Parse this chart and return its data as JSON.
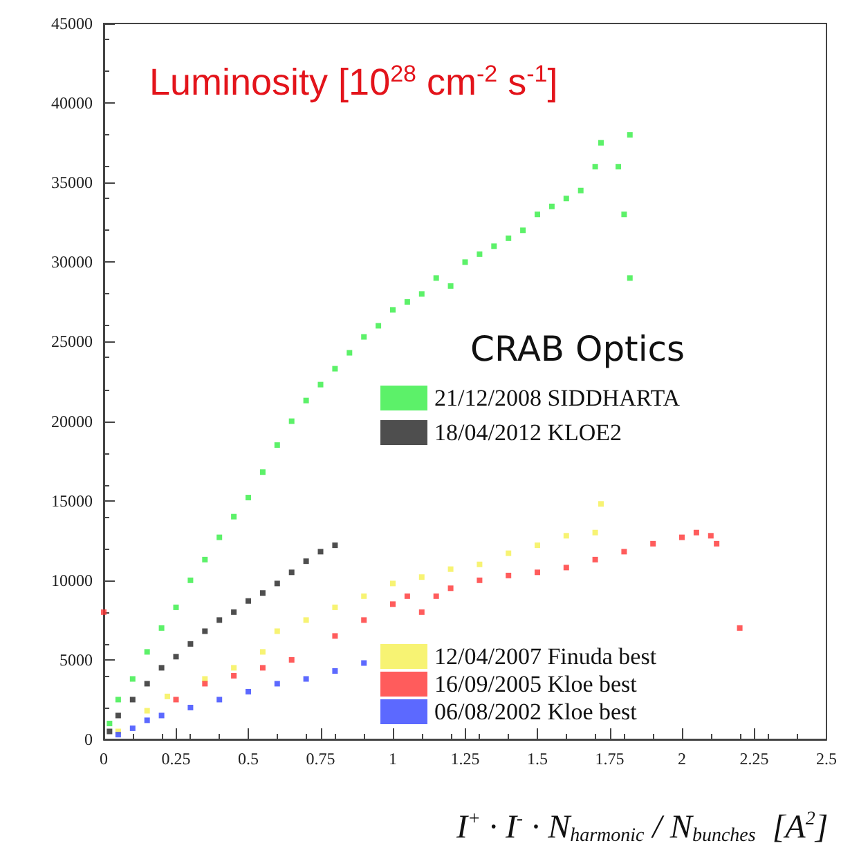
{
  "chart_data": {
    "type": "scatter",
    "title": "Luminosity [10$^{28}$ cm$^{-2}$ s$^{-1}$]",
    "xlabel": "I$^{+}$ · I$^{-}$ · N$_{harmonic}$ / N$_{bunches}$  [A$^{2}$]",
    "legend_title": "CRAB Optics",
    "legend": "right",
    "marker": "square",
    "grid": false,
    "xlim": [
      0,
      2.5
    ],
    "xticks": [
      0,
      0.25,
      0.5,
      0.75,
      1,
      1.25,
      1.5,
      1.75,
      2,
      2.25,
      2.5
    ],
    "ylim": [
      0,
      45000
    ],
    "yticks": [
      0,
      5000,
      10000,
      15000,
      20000,
      25000,
      30000,
      35000,
      40000,
      45000
    ],
    "series": [
      {
        "name": "21/12/2008 SIDDHARTA",
        "color": "#33ee44",
        "x": [
          0.02,
          0.05,
          0.1,
          0.15,
          0.2,
          0.25,
          0.3,
          0.35,
          0.4,
          0.45,
          0.5,
          0.55,
          0.6,
          0.65,
          0.7,
          0.75,
          0.8,
          0.85,
          0.9,
          0.95,
          1.0,
          1.05,
          1.1,
          1.15,
          1.2,
          1.25,
          1.3,
          1.35,
          1.4,
          1.45,
          1.5,
          1.55,
          1.6,
          1.65,
          1.7,
          1.72,
          1.78,
          1.8,
          1.82,
          1.82
        ],
        "values": [
          1000,
          2500,
          3800,
          5500,
          7000,
          8300,
          10000,
          11300,
          12700,
          14000,
          15200,
          16800,
          18500,
          20000,
          21300,
          22300,
          23300,
          24300,
          25300,
          26000,
          27000,
          27500,
          28000,
          29000,
          28500,
          30000,
          30500,
          31000,
          31500,
          32000,
          33000,
          33500,
          34000,
          34500,
          36000,
          37500,
          36000,
          33000,
          38000,
          29000
        ]
      },
      {
        "name": "18/04/2012 KLOE2",
        "color": "#222222",
        "x": [
          0.02,
          0.05,
          0.1,
          0.15,
          0.2,
          0.25,
          0.3,
          0.35,
          0.4,
          0.45,
          0.5,
          0.55,
          0.6,
          0.65,
          0.7,
          0.75,
          0.8
        ],
        "values": [
          500,
          1500,
          2500,
          3500,
          4500,
          5200,
          6000,
          6800,
          7500,
          8000,
          8700,
          9200,
          9800,
          10500,
          11200,
          11800,
          12200
        ]
      },
      {
        "name": "12/04/2007 Finuda best",
        "color": "#f5f050",
        "x": [
          0.05,
          0.15,
          0.22,
          0.35,
          0.45,
          0.55,
          0.6,
          0.7,
          0.8,
          0.9,
          1.0,
          1.1,
          1.2,
          1.3,
          1.4,
          1.5,
          1.6,
          1.7,
          1.72
        ],
        "values": [
          500,
          1800,
          2700,
          3800,
          4500,
          5500,
          6800,
          7500,
          8300,
          9000,
          9800,
          10200,
          10700,
          11000,
          11700,
          12200,
          12800,
          13000,
          14800
        ]
      },
      {
        "name": "16/09/2005 Kloe best",
        "color": "#ff3333",
        "x": [
          0,
          0.25,
          0.35,
          0.45,
          0.55,
          0.65,
          0.8,
          0.9,
          1.0,
          1.05,
          1.1,
          1.15,
          1.2,
          1.3,
          1.4,
          1.5,
          1.6,
          1.7,
          1.8,
          1.9,
          2.0,
          2.05,
          2.1,
          2.12,
          2.2
        ],
        "values": [
          8000,
          2500,
          3500,
          4000,
          4500,
          5000,
          6500,
          7500,
          8500,
          9000,
          8000,
          9000,
          9500,
          10000,
          10300,
          10500,
          10800,
          11300,
          11800,
          12300,
          12700,
          13000,
          12800,
          12300,
          7000
        ]
      },
      {
        "name": "06/08/2002 Kloe best",
        "color": "#3344ff",
        "x": [
          0.05,
          0.1,
          0.15,
          0.2,
          0.3,
          0.4,
          0.5,
          0.6,
          0.7,
          0.8,
          0.9
        ],
        "values": [
          300,
          700,
          1200,
          1500,
          2000,
          2500,
          3000,
          3500,
          3800,
          4300,
          4800
        ]
      }
    ]
  }
}
